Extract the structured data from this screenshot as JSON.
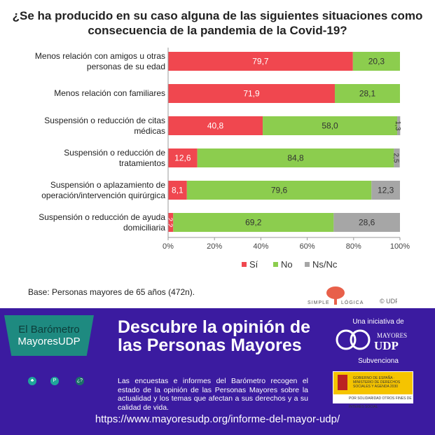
{
  "chart_data": {
    "type": "bar",
    "orientation": "horizontal-stacked-100",
    "title": "¿Se ha producido en su caso alguna de las siguientes situaciones como consecuencia de la pandemia de la Covid-19?",
    "categories": [
      "Menos relación con amigos u otras personas de su edad",
      "Menos relación con familiares",
      "Suspensión o reducción de citas médicas",
      "Suspensión o reducción de tratamientos",
      "Suspensión o aplazamiento de operación/intervención quirúrgica",
      "Suspensión o reducción de ayuda domiciliaria"
    ],
    "series": [
      {
        "name": "Sí",
        "color": "#f0474f",
        "values": [
          79.7,
          71.9,
          40.8,
          12.6,
          8.1,
          2.2
        ]
      },
      {
        "name": "No",
        "color": "#8ccd4e",
        "values": [
          20.3,
          28.1,
          58.0,
          84.8,
          79.6,
          69.2
        ]
      },
      {
        "name": "Ns/Nc",
        "color": "#a6a6a6",
        "values": [
          0,
          0,
          1.3,
          2.5,
          12.3,
          28.6
        ]
      }
    ],
    "xlim": [
      0,
      100
    ],
    "xticks": [
      "0%",
      "20%",
      "40%",
      "60%",
      "80%",
      "100%"
    ],
    "legend": "bottom",
    "grid": false
  },
  "footnote": "Base: Personas mayores de 65 años (472n).",
  "logos": {
    "simple_logica": "SIMPLE LÓGICA",
    "udp": "© UDP"
  },
  "banner": {
    "bubble_line1": "El Barómetro",
    "bubble_line2": "MayoresUDP",
    "icons": [
      "person-icon",
      "search-icon",
      "question-icon"
    ],
    "icon_labels": [
      "♣",
      "P",
      "¿?"
    ],
    "headline": "Descubre la opinión de las Personas Mayores",
    "description": "Las encuestas e informes del Barómetro recogen el estado de la opinión de las Personas Mayores sobre la actualidad y los temas que afectan a sus derechos y a su calidad de vida.",
    "url": "https://www.mayoresudp.org/informe-del-mayor-udp/",
    "initiative": "Una iniciativa de",
    "mayores_logo": "MAYORES UDP",
    "subsidy": "Subvenciona",
    "gob_text": "GOBIERNO DE ESPAÑA · MINISTERIO DE DERECHOS SOCIALES Y AGENDA 2030",
    "gob_footer": "POR SOLIDARIDAD OTROS FINES DE INTERÉS SOCIAL",
    "bg_color": "#3b1ba0"
  }
}
